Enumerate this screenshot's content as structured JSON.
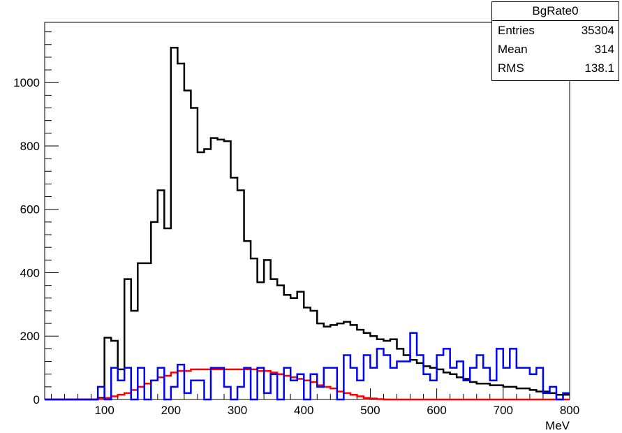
{
  "stats": {
    "title": "BgRate0",
    "rows": [
      {
        "label": "Entries",
        "value": "35304"
      },
      {
        "label": "Mean",
        "value": "314"
      },
      {
        "label": "RMS",
        "value": "138.1"
      }
    ]
  },
  "chart_data": {
    "type": "line",
    "title": "",
    "xlabel": "MeV",
    "ylabel": "",
    "xlim": [
      10,
      800
    ],
    "ylim": [
      0,
      1190
    ],
    "xticks": [
      100,
      200,
      300,
      400,
      500,
      600,
      700,
      800
    ],
    "yticks": [
      0,
      200,
      400,
      600,
      800,
      1000
    ],
    "bin_edges": [
      10,
      20,
      30,
      40,
      50,
      60,
      70,
      80,
      90,
      100,
      110,
      120,
      130,
      140,
      150,
      160,
      170,
      180,
      190,
      200,
      210,
      220,
      230,
      240,
      250,
      260,
      270,
      280,
      290,
      300,
      310,
      320,
      330,
      340,
      350,
      360,
      370,
      380,
      390,
      400,
      410,
      420,
      430,
      440,
      450,
      460,
      470,
      480,
      490,
      500,
      510,
      520,
      530,
      540,
      550,
      560,
      570,
      580,
      590,
      600,
      610,
      620,
      630,
      640,
      650,
      660,
      670,
      680,
      690,
      700,
      710,
      720,
      730,
      740,
      750,
      760,
      770,
      780,
      790,
      800
    ],
    "series": [
      {
        "color": "#000000",
        "values": [
          0,
          0,
          0,
          0,
          0,
          0,
          0,
          0,
          5,
          195,
          185,
          95,
          380,
          280,
          430,
          430,
          560,
          660,
          540,
          1110,
          1060,
          975,
          920,
          780,
          790,
          825,
          820,
          815,
          700,
          660,
          500,
          445,
          370,
          440,
          380,
          360,
          330,
          320,
          340,
          290,
          280,
          240,
          230,
          235,
          240,
          245,
          235,
          220,
          210,
          200,
          190,
          185,
          190,
          160,
          140,
          125,
          115,
          105,
          100,
          95,
          85,
          80,
          70,
          65,
          55,
          50,
          50,
          45,
          45,
          40,
          40,
          35,
          35,
          30,
          25,
          25,
          20,
          15,
          15
        ]
      },
      {
        "color": "#ff0000",
        "values": [
          0,
          0,
          0,
          0,
          0,
          0,
          0,
          0,
          2,
          5,
          10,
          15,
          20,
          30,
          40,
          50,
          60,
          70,
          75,
          85,
          90,
          90,
          95,
          95,
          95,
          95,
          95,
          95,
          95,
          95,
          95,
          95,
          90,
          90,
          85,
          80,
          75,
          70,
          65,
          60,
          55,
          45,
          40,
          35,
          25,
          20,
          15,
          10,
          5,
          3,
          1,
          0,
          0,
          0,
          0,
          0,
          0,
          0,
          0,
          0,
          0,
          0,
          0,
          0,
          0,
          0,
          0,
          0,
          0,
          0,
          0,
          0,
          0,
          0,
          0,
          0,
          0,
          0,
          0
        ]
      },
      {
        "color": "#0000ff",
        "values": [
          0,
          0,
          0,
          0,
          0,
          0,
          0,
          0,
          40,
          0,
          100,
          60,
          100,
          0,
          100,
          0,
          60,
          100,
          0,
          40,
          110,
          20,
          60,
          60,
          0,
          100,
          100,
          40,
          0,
          40,
          100,
          0,
          100,
          20,
          80,
          0,
          100,
          60,
          80,
          0,
          80,
          40,
          100,
          100,
          0,
          140,
          100,
          60,
          140,
          100,
          160,
          140,
          100,
          120,
          120,
          210,
          140,
          80,
          60,
          140,
          160,
          100,
          120,
          60,
          100,
          140,
          100,
          60,
          160,
          100,
          160,
          100,
          100,
          80,
          100,
          20,
          40,
          0,
          20
        ]
      }
    ]
  }
}
